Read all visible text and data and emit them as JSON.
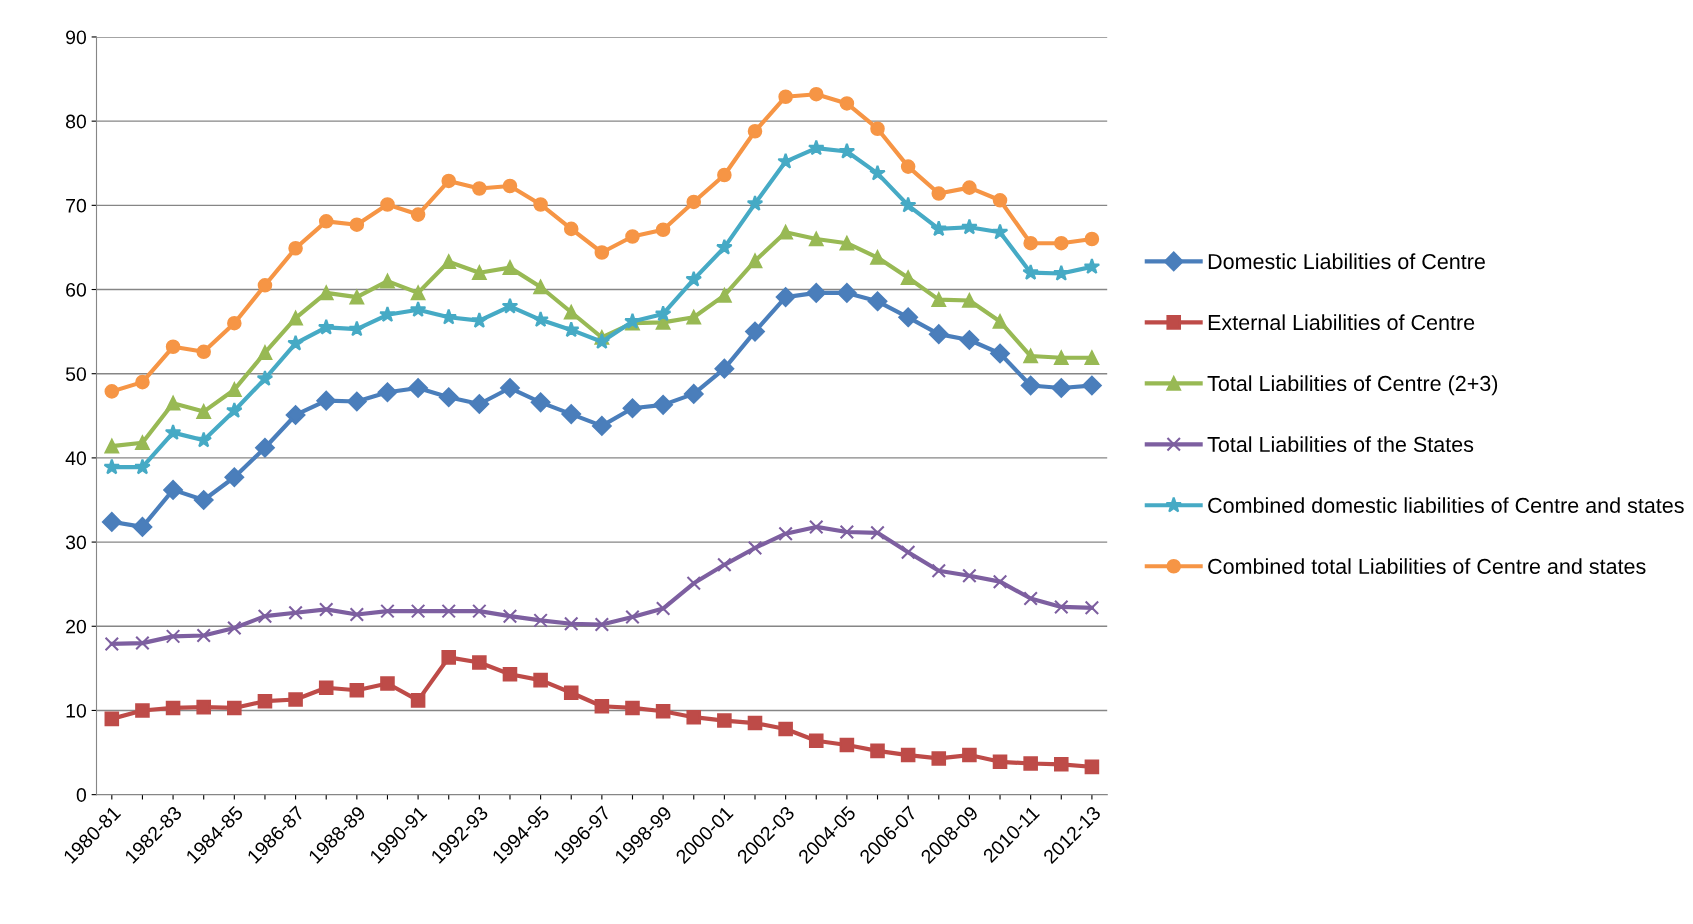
{
  "chart_data": {
    "type": "line",
    "categories": [
      "1980-81",
      null,
      "1982-83",
      null,
      "1984-85",
      null,
      "1986-87",
      null,
      "1988-89",
      null,
      "1990-91",
      null,
      "1992-93",
      null,
      "1994-95",
      null,
      "1996-97",
      null,
      "1998-99",
      null,
      "2000-01",
      null,
      "2002-03",
      null,
      "2004-05",
      null,
      "2006-07",
      null,
      "2008-09",
      null,
      "2010-11",
      null,
      "2012-13"
    ],
    "ylim": [
      0,
      90
    ],
    "yticks": [
      0,
      10,
      20,
      30,
      40,
      50,
      60,
      70,
      80,
      90
    ],
    "grid": "y",
    "legend": "right",
    "line_style": "solid",
    "series": [
      {
        "name": "Domestic Liabilities of Centre",
        "color": "#4a7ebb",
        "marker": "diamond",
        "values": [
          32.4,
          31.8,
          36.2,
          35.0,
          37.7,
          41.2,
          45.1,
          46.8,
          46.7,
          47.8,
          48.3,
          47.2,
          46.4,
          48.3,
          46.6,
          45.2,
          43.8,
          45.9,
          46.3,
          47.6,
          50.6,
          55.0,
          59.1,
          59.6,
          59.6,
          58.6,
          56.7,
          54.7,
          54.0,
          52.4,
          48.6,
          48.3,
          48.6
        ]
      },
      {
        "name": "External Liabilities of Centre",
        "color": "#be4b48",
        "marker": "square",
        "values": [
          9.0,
          10.0,
          10.3,
          10.4,
          10.3,
          11.1,
          11.3,
          12.7,
          12.4,
          13.2,
          11.2,
          16.3,
          15.7,
          14.3,
          13.6,
          12.1,
          10.5,
          10.3,
          9.9,
          9.2,
          8.8,
          8.5,
          7.8,
          6.4,
          5.9,
          5.2,
          4.7,
          4.3,
          4.7,
          3.9,
          3.7,
          3.6,
          3.3
        ]
      },
      {
        "name": "Total Liabilities of Centre (2+3)",
        "color": "#98b954",
        "marker": "triangle",
        "values": [
          41.4,
          41.8,
          46.5,
          45.5,
          48.1,
          52.5,
          56.6,
          59.6,
          59.1,
          61.0,
          59.6,
          63.3,
          62.0,
          62.6,
          60.3,
          57.3,
          54.3,
          56.0,
          56.1,
          56.7,
          59.3,
          63.4,
          66.8,
          66.0,
          65.5,
          63.8,
          61.4,
          58.8,
          58.7,
          56.2,
          52.1,
          51.9,
          51.9
        ]
      },
      {
        "name": "Total Liabilities of the States",
        "color": "#7d5fa0",
        "marker": "cross",
        "values": [
          17.9,
          18.0,
          18.8,
          18.9,
          19.8,
          21.2,
          21.6,
          22.0,
          21.4,
          21.8,
          21.8,
          21.8,
          21.8,
          21.2,
          20.7,
          20.3,
          20.2,
          21.1,
          22.1,
          25.1,
          27.3,
          29.3,
          31.0,
          31.8,
          31.2,
          31.1,
          28.8,
          26.6,
          26.0,
          25.3,
          23.3,
          22.3,
          22.2
        ]
      },
      {
        "name": "Combined domestic liabilities of Centre and states",
        "color": "#46aac5",
        "marker": "star",
        "values": [
          38.9,
          38.9,
          43.0,
          42.1,
          45.6,
          49.4,
          53.6,
          55.5,
          55.3,
          57.0,
          57.6,
          56.7,
          56.3,
          58.0,
          56.4,
          55.2,
          53.8,
          56.2,
          57.1,
          61.2,
          65.0,
          70.2,
          75.2,
          76.8,
          76.4,
          73.8,
          70.0,
          67.2,
          67.4,
          66.8,
          62.0,
          61.9,
          62.7
        ]
      },
      {
        "name": "Combined total Liabilities of Centre and states",
        "color": "#f69545",
        "marker": "circle",
        "values": [
          47.9,
          49.0,
          53.2,
          52.6,
          56.0,
          60.5,
          64.9,
          68.1,
          67.7,
          70.1,
          68.9,
          72.9,
          72.0,
          72.3,
          70.1,
          67.2,
          64.4,
          66.3,
          67.1,
          70.4,
          73.6,
          78.8,
          82.9,
          83.2,
          82.1,
          79.1,
          74.6,
          71.4,
          72.1,
          70.6,
          65.5,
          65.5,
          66.0
        ]
      }
    ]
  }
}
